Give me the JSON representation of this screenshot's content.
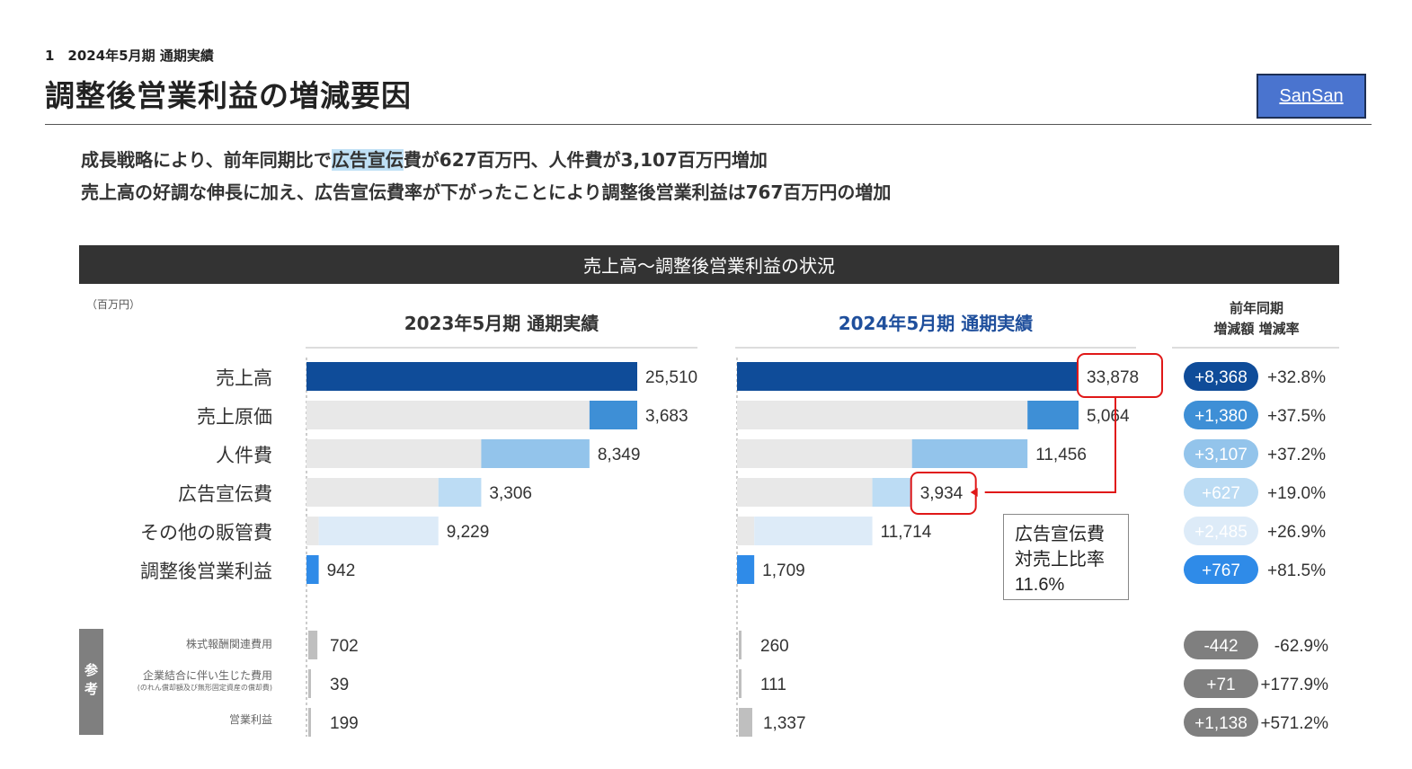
{
  "header": {
    "section": "1　2024年5月期 通期実績",
    "title": "調整後営業利益の増減要因",
    "logo": "SanSan"
  },
  "summary": {
    "line1_before": "成長戦略により、前年同期比で",
    "line1_highlight": "広告宣伝",
    "line1_after": "費が627百万円、人件費が3,107百万円増加",
    "line2": "売上高の好調な伸長に加え、広告宣伝費率が下がったことにより調整後営業利益は767百万円の増加"
  },
  "banner": "売上高～調整後営業利益の状況",
  "unit": "（百万円）",
  "yoy_header": {
    "line1": "前年同期",
    "line2": "増減額  増減率"
  },
  "ref_label": "参考",
  "callout": {
    "line1": "広告宣伝費",
    "line2": "対売上比率",
    "line3": "11.6%"
  },
  "colors": {
    "sales": "#0f4c99",
    "cogs": "#3e8fd6",
    "personnel": "#93c4eb",
    "advertising": "#bcdcf4",
    "other_sga": "#ddebf8",
    "op_profit": "#2f8be8",
    "reference": "#bfbfbf",
    "base_gray": "#e8e8e8",
    "highlight_red": "#e01818"
  },
  "chart_data": {
    "type": "bar",
    "subtype": "waterfall",
    "title": "売上高～調整後営業利益の状況",
    "unit": "百万円",
    "panels": [
      {
        "period": "2023年5月期 通期実績"
      },
      {
        "period": "2024年5月期 通期実績"
      }
    ],
    "categories": [
      "売上高",
      "売上原価",
      "人件費",
      "広告宣伝費",
      "その他の販管費",
      "調整後営業利益"
    ],
    "series": [
      {
        "name": "2023年5月期 通期実績",
        "values": [
          25510,
          3683,
          8349,
          3306,
          9229,
          942
        ]
      },
      {
        "name": "2024年5月期 通期実績",
        "values": [
          33878,
          5064,
          11456,
          3934,
          11714,
          1709
        ]
      }
    ],
    "value_labels_2023": [
      "25,510",
      "3,683",
      "8,349",
      "3,306",
      "9,229",
      "942"
    ],
    "value_labels_2024": [
      "33,878",
      "5,064",
      "11,456",
      "3,934",
      "11,714",
      "1,709"
    ],
    "yoy_change": [
      "+8,368",
      "+1,380",
      "+3,107",
      "+627",
      "+2,485",
      "+767"
    ],
    "yoy_rate": [
      "+32.8%",
      "+37.5%",
      "+37.2%",
      "+19.0%",
      "+26.9%",
      "+81.5%"
    ],
    "reference": {
      "label": "参考",
      "categories": [
        "株式報酬関連費用",
        "企業結合に伴い生じた費用",
        "営業利益"
      ],
      "category_notes": [
        "",
        "(のれん償却額及び無形固定資産の償却費)",
        ""
      ],
      "values_2023": [
        702,
        39,
        199
      ],
      "values_2024": [
        260,
        111,
        1337
      ],
      "labels_2023": [
        "702",
        "39",
        "199"
      ],
      "labels_2024": [
        "260",
        "111",
        "1,337"
      ],
      "yoy_change": [
        "-442",
        "+71",
        "+1,138"
      ],
      "yoy_rate": [
        "-62.9%",
        "+177.9%",
        "+571.2%"
      ]
    }
  }
}
